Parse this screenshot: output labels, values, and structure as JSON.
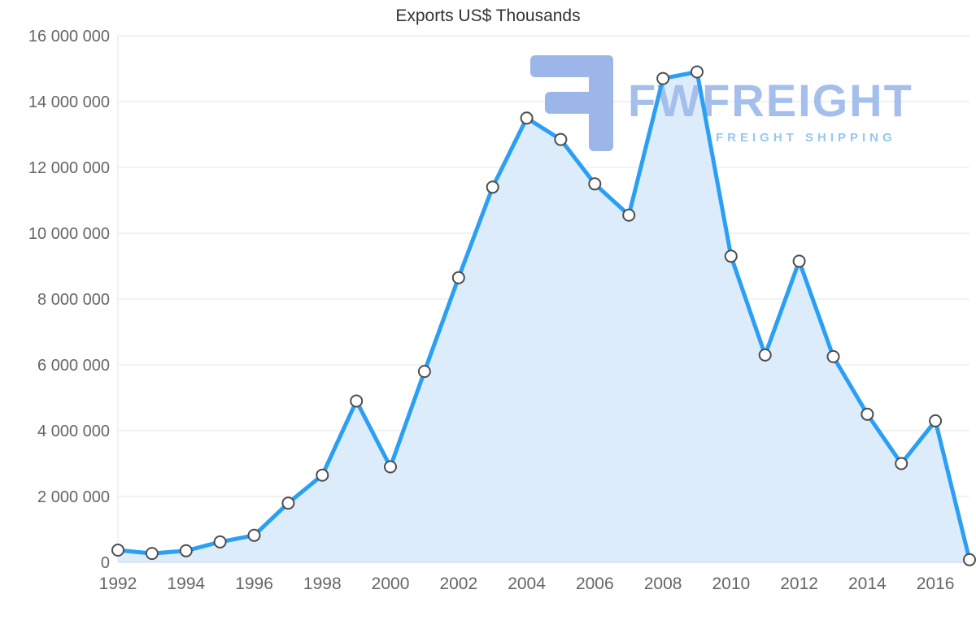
{
  "chart_data": {
    "type": "area",
    "title": "Exports US$ Thousands",
    "xlabel": "",
    "ylabel": "",
    "x": [
      1992,
      1993,
      1994,
      1995,
      1996,
      1997,
      1998,
      1999,
      2000,
      2001,
      2002,
      2003,
      2004,
      2005,
      2006,
      2007,
      2008,
      2009,
      2010,
      2011,
      2012,
      2013,
      2014,
      2015,
      2016,
      2017
    ],
    "values": [
      370000,
      270000,
      350000,
      620000,
      820000,
      1800000,
      2650000,
      4900000,
      2900000,
      5800000,
      8650000,
      11400000,
      13500000,
      12850000,
      11500000,
      10550000,
      14700000,
      14900000,
      9300000,
      6300000,
      9150000,
      6250000,
      4500000,
      3000000,
      4300000,
      80000
    ],
    "x_ticks": [
      1992,
      1994,
      1996,
      1998,
      2000,
      2002,
      2004,
      2006,
      2008,
      2010,
      2012,
      2014,
      2016
    ],
    "ylim": [
      0,
      16000000
    ],
    "y_tick_step": 2000000,
    "grid": true,
    "legend": false,
    "colors": {
      "line": "#2b9ff4",
      "area_fill": "#dcecfa",
      "marker_fill": "#ffffff",
      "marker_stroke": "#4d4d4d",
      "grid": "#e6e6e6",
      "axis_line": "#ccd6eb",
      "axis_text": "#666666",
      "title_text": "#333333",
      "watermark_main": "#a4bfec",
      "watermark_sub": "#95c8ef",
      "watermark_logo": "#9cb6e9"
    }
  },
  "watermark": {
    "brand": "FWFREIGHT",
    "tagline": "FREIGHT SHIPPING"
  }
}
